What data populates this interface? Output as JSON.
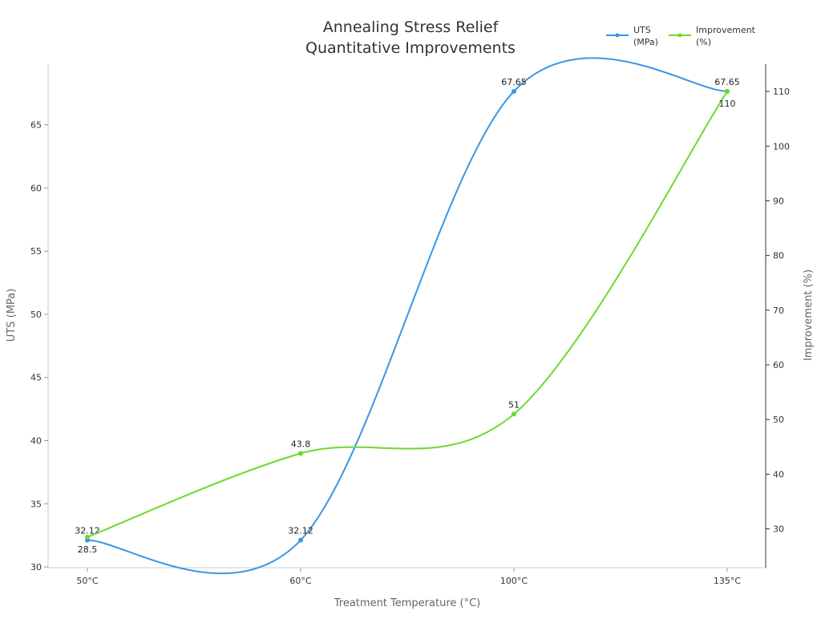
{
  "chart_data": {
    "type": "line",
    "title": [
      "Annealing Stress Relief",
      "Quantitative Improvements"
    ],
    "xlabel": "Treatment Temperature (°C)",
    "ylabel_left": "UTS (MPa)",
    "ylabel_right": "Improvement (%)",
    "categories": [
      "50°C",
      "60°C",
      "100°C",
      "135°C"
    ],
    "ylim_left": [
      29.94,
      69.8
    ],
    "ylim_right": [
      22.9,
      115
    ],
    "yticks_left": [
      30,
      35,
      40,
      45,
      50,
      55,
      60,
      65
    ],
    "yticks_right": [
      30,
      40,
      50,
      60,
      70,
      80,
      90,
      100,
      110
    ],
    "grid": false,
    "legend_placement": "top-right",
    "series": [
      {
        "name": "UTS\n(MPa)",
        "legend": [
          "UTS",
          "(MPa)"
        ],
        "axis": "left",
        "color": "#3a96e6",
        "values": [
          32.12,
          32.12,
          67.65,
          67.65
        ]
      },
      {
        "name": "Improvement\n(%)",
        "legend": [
          "Improvement",
          "(%)"
        ],
        "axis": "right",
        "color": "#6dd92e",
        "values": [
          28.5,
          43.8,
          51,
          110
        ]
      }
    ]
  }
}
